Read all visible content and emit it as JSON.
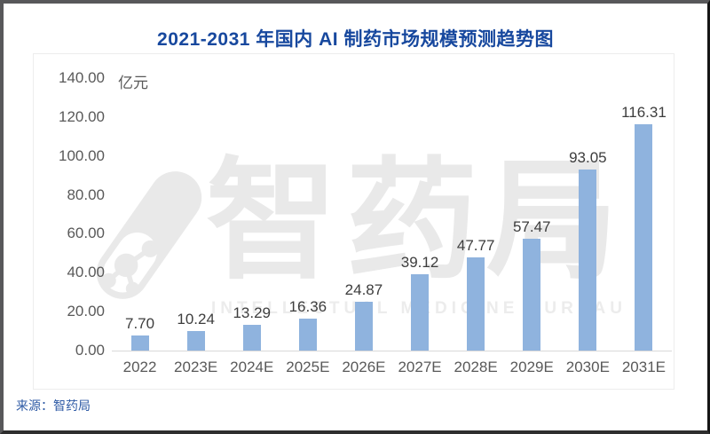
{
  "chart_data": {
    "type": "bar",
    "title": "2021-2031 年国内 AI 制药市场规模预测趋势图",
    "categories": [
      "2022",
      "2023E",
      "2024E",
      "2025E",
      "2026E",
      "2027E",
      "2028E",
      "2029E",
      "2030E",
      "2031E"
    ],
    "values": [
      7.7,
      10.24,
      13.29,
      16.36,
      24.87,
      39.12,
      47.77,
      57.47,
      93.05,
      116.31
    ],
    "value_labels": [
      "7.70",
      "10.24",
      "13.29",
      "16.36",
      "24.87",
      "39.12",
      "47.77",
      "57.47",
      "93.05",
      "116.31"
    ],
    "xlabel": "",
    "ylabel": "亿元",
    "ylim": [
      0,
      140
    ],
    "y_ticks": [
      140,
      120,
      100,
      80,
      60,
      40,
      20,
      0
    ],
    "y_tick_format_decimals": 2,
    "grid": "off",
    "legend": "none"
  },
  "watermark": {
    "cn": "智药局",
    "en": "INTELLECTUAL MEDICINE BUREAU",
    "icon": "pill-molecule-icon"
  },
  "source": {
    "label": "来源：智药局"
  },
  "colors": {
    "title": "#17489E",
    "source": "#2E5AA5",
    "bar": "#8FB3DE",
    "axis_text": "#595959",
    "value_text": "#3D3D3D",
    "baseline": "#D9D9D9",
    "watermark": "#E9E9E9",
    "frame_border": "#58585A"
  }
}
